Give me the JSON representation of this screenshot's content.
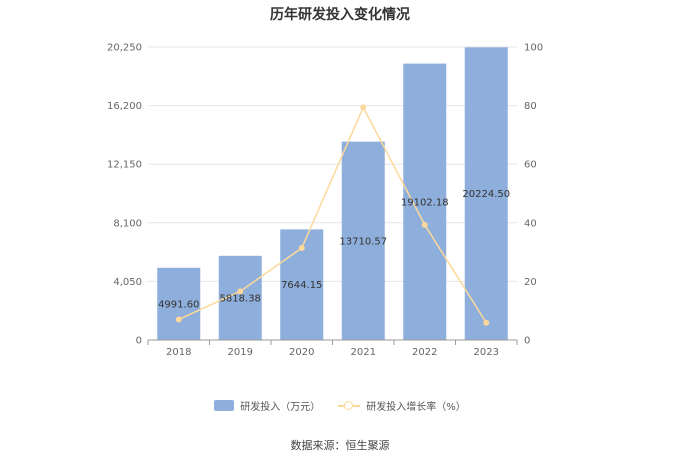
{
  "chart_data": {
    "type": "bar",
    "title": "历年研发投入变化情况",
    "categories": [
      "2018",
      "2019",
      "2020",
      "2021",
      "2022",
      "2023"
    ],
    "series": [
      {
        "name": "研发投入（万元）",
        "type": "bar",
        "axis": "left",
        "values": [
          4991.6,
          5818.38,
          7644.15,
          13710.57,
          19102.18,
          20224.5
        ],
        "labels": [
          "4991.60",
          "5818.38",
          "7644.15",
          "13710.57",
          "19102.18",
          "20224.50"
        ],
        "color": "#8eaedb"
      },
      {
        "name": "研发投入增长率（%）",
        "type": "line",
        "axis": "right",
        "values": [
          7,
          16.6,
          31.4,
          79.4,
          39.3,
          5.9
        ],
        "color": "#fcd99a"
      }
    ],
    "y_left": {
      "ylim": [
        0,
        20250
      ],
      "ticks": [
        "0",
        "4,050",
        "8,100",
        "12,150",
        "16,200",
        "20,250"
      ]
    },
    "y_right": {
      "ylim": [
        0,
        100
      ],
      "ticks": [
        "0",
        "20",
        "40",
        "60",
        "80",
        "100"
      ]
    },
    "grid": true,
    "legend_position": "bottom"
  },
  "footer": {
    "source": "数据来源：恒生聚源"
  }
}
